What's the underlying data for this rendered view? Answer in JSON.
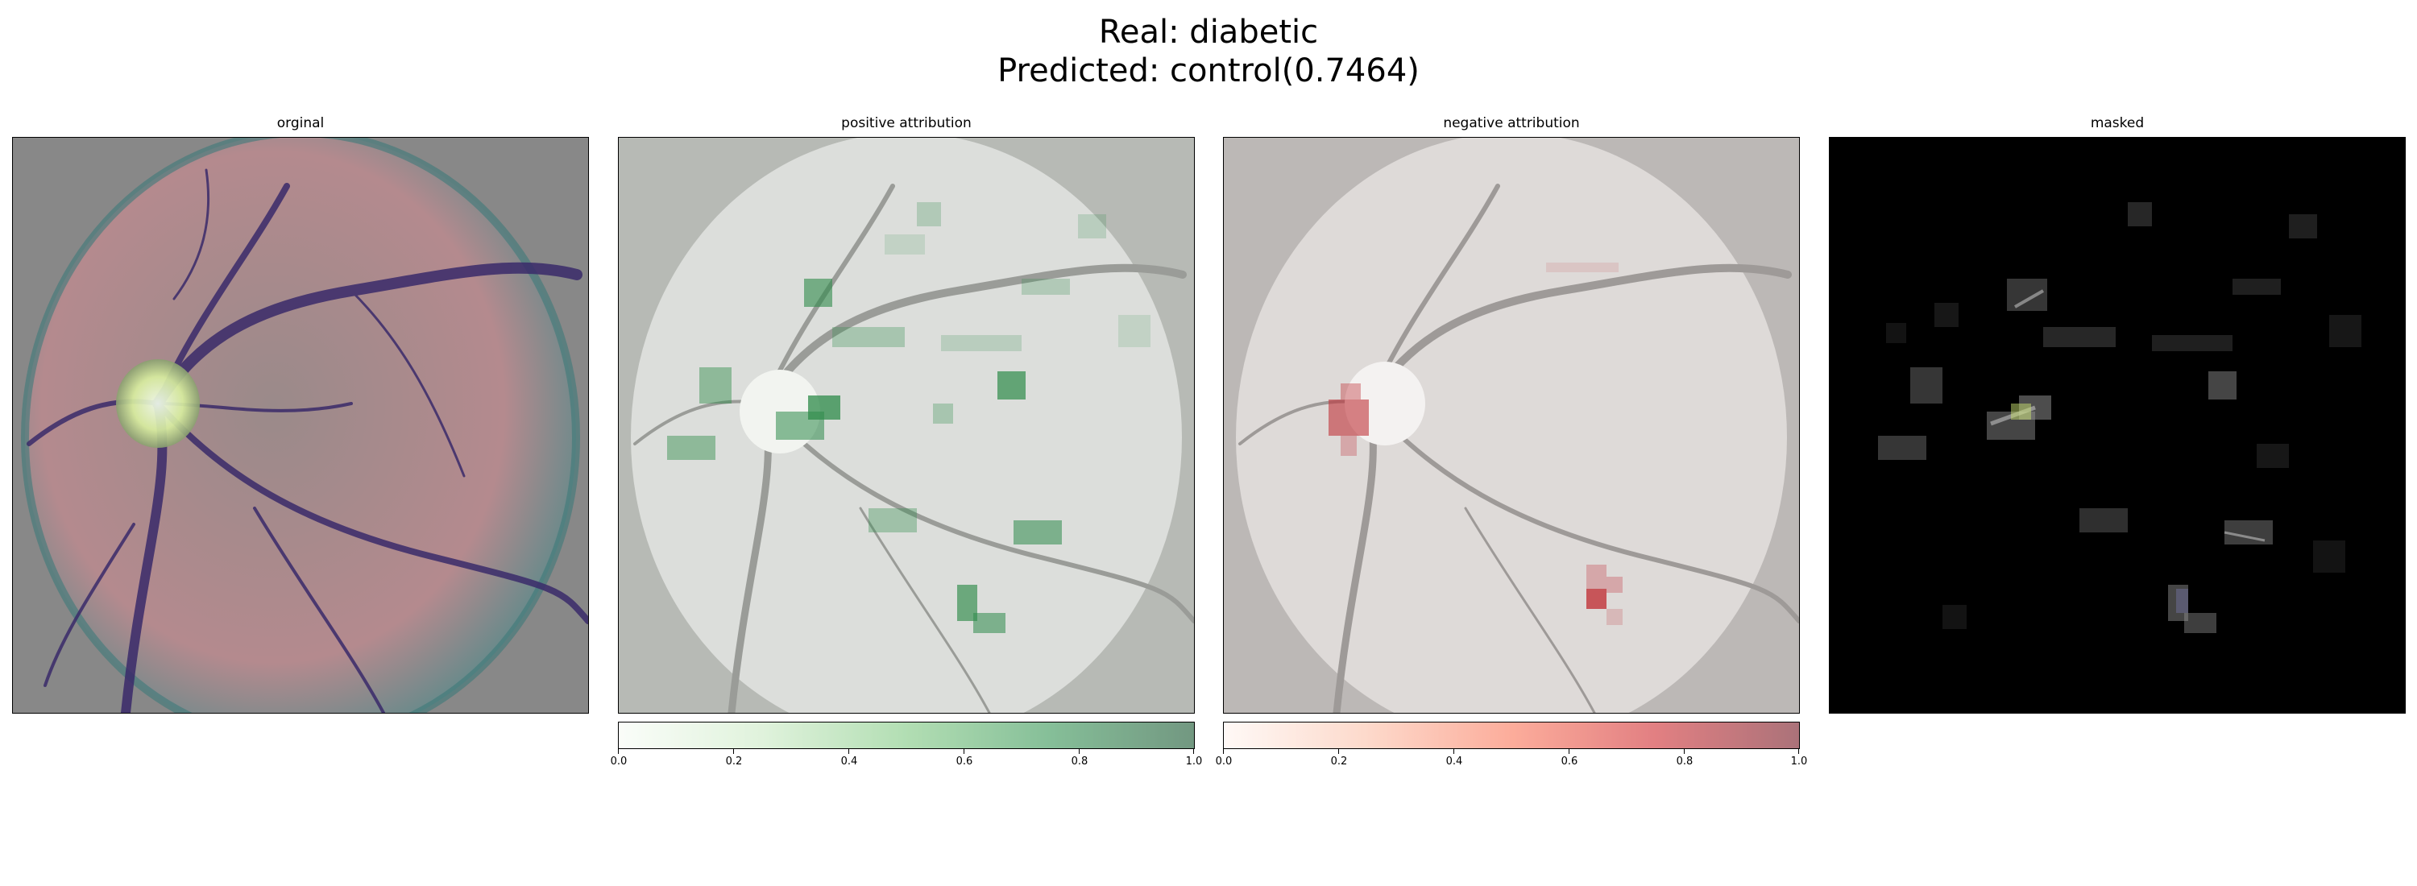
{
  "title": {
    "line1": "Real: diabetic",
    "line2": "Predicted: control(0.7464)"
  },
  "panels": [
    {
      "id": "original",
      "label": "orginal"
    },
    {
      "id": "positive",
      "label": "positive attribution"
    },
    {
      "id": "negative",
      "label": "negative attribution"
    },
    {
      "id": "masked",
      "label": "masked"
    }
  ],
  "colorbars": {
    "positive": {
      "colormap": "Greens",
      "ticks": [
        "0.0",
        "0.2",
        "0.4",
        "0.6",
        "0.8",
        "1.0"
      ]
    },
    "negative": {
      "colormap": "Reds",
      "ticks": [
        "0.0",
        "0.2",
        "0.4",
        "0.6",
        "0.8",
        "1.0"
      ]
    }
  },
  "colors": {
    "original_background": "#888888",
    "vessel": "#3a2a6a",
    "retina_tint": "#b08890",
    "positive_accent": "#2e8b4a",
    "negative_accent": "#c0333a",
    "masked_background": "#000000"
  }
}
